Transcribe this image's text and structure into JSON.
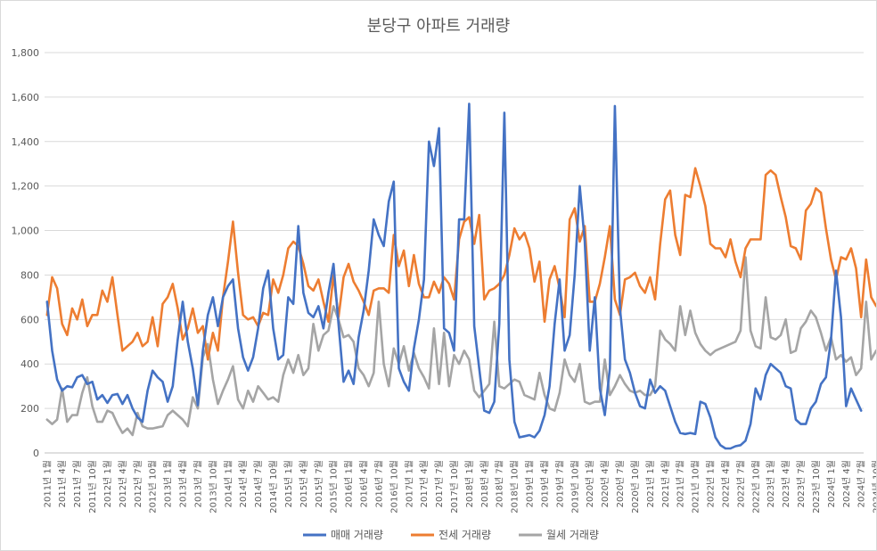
{
  "chart_data": {
    "type": "line",
    "title": "분당구 아파트 거래량",
    "xlabel": "",
    "ylabel": "",
    "ylim": [
      0,
      1800
    ],
    "yticks": [
      0,
      200,
      400,
      600,
      800,
      1000,
      1200,
      1400,
      1600,
      1800
    ],
    "ytick_labels": [
      "0",
      "200",
      "400",
      "600",
      "800",
      "1,000",
      "1,200",
      "1,400",
      "1,600",
      "1,800"
    ],
    "grid": true,
    "legend_position": "bottom",
    "x_start": "2011-01",
    "x_end": "2024-12",
    "xtick_labels": [
      "2011년 1월",
      "2011년 4월",
      "2011년 7월",
      "2011년 10월",
      "2012년 1월",
      "2012년 4월",
      "2012년 7월",
      "2012년 10월",
      "2013년 1월",
      "2013년 4월",
      "2013년 7월",
      "2013년 10월",
      "2014년 1월",
      "2014년 4월",
      "2014년 7월",
      "2014년 10월",
      "2015년 1월",
      "2015년 4월",
      "2015년 7월",
      "2015년 10월",
      "2016년 1월",
      "2016년 4월",
      "2016년 7월",
      "2016년 10월",
      "2017년 1월",
      "2017년 4월",
      "2017년 7월",
      "2017년 10월",
      "2018년 1월",
      "2018년 4월",
      "2018년 7월",
      "2018년 10월",
      "2019년 1월",
      "2019년 4월",
      "2019년 7월",
      "2019년 10월",
      "2020년 1월",
      "2020년 4월",
      "2020년 7월",
      "2020년 10월",
      "2021년 1월",
      "2021년 4월",
      "2021년 7월",
      "2021년 10월",
      "2022년 1월",
      "2022년 4월",
      "2022년 7월",
      "2022년 10월",
      "2023년 1월",
      "2023년 4월",
      "2023년 7월",
      "2023년 10월",
      "2024년 1월",
      "2024년 4월",
      "2024년 7월",
      "2024년 10월"
    ],
    "series": [
      {
        "name": "매매 거래량",
        "color": "#4472C4",
        "values": [
          680,
          460,
          330,
          280,
          300,
          295,
          340,
          350,
          310,
          320,
          240,
          260,
          225,
          260,
          265,
          220,
          260,
          200,
          160,
          140,
          280,
          370,
          340,
          320,
          230,
          300,
          510,
          680,
          500,
          380,
          215,
          460,
          620,
          700,
          570,
          700,
          750,
          780,
          560,
          430,
          370,
          430,
          560,
          740,
          820,
          560,
          420,
          440,
          700,
          670,
          1020,
          720,
          630,
          610,
          660,
          560,
          720,
          850,
          580,
          320,
          370,
          310,
          520,
          640,
          820,
          1050,
          980,
          930,
          1130,
          1220,
          380,
          320,
          280,
          470,
          600,
          780,
          1400,
          1290,
          1460,
          560,
          540,
          460,
          1050,
          1050,
          1570,
          570,
          380,
          190,
          180,
          230,
          580,
          1530,
          420,
          140,
          70,
          75,
          80,
          70,
          100,
          170,
          300,
          580,
          780,
          460,
          530,
          800,
          1200,
          950,
          460,
          700,
          290,
          170,
          380,
          1560,
          650,
          420,
          360,
          270,
          210,
          200,
          330,
          270,
          300,
          280,
          210,
          140,
          90,
          85,
          90,
          85,
          230,
          220,
          160,
          70,
          35,
          20,
          20,
          30,
          35,
          55,
          130,
          290,
          240,
          350,
          400,
          380,
          360,
          300,
          290,
          150,
          130,
          130,
          200,
          230,
          310,
          340,
          510,
          820,
          610,
          210,
          290,
          240,
          190
        ]
      },
      {
        "name": "전세 거래량",
        "color": "#ED7D31",
        "values": [
          620,
          790,
          740,
          580,
          530,
          650,
          600,
          690,
          570,
          620,
          620,
          730,
          680,
          790,
          620,
          460,
          480,
          500,
          540,
          480,
          500,
          610,
          480,
          670,
          700,
          760,
          650,
          510,
          560,
          650,
          540,
          570,
          420,
          540,
          460,
          700,
          860,
          1040,
          810,
          620,
          600,
          610,
          570,
          630,
          620,
          780,
          720,
          800,
          920,
          950,
          930,
          850,
          750,
          730,
          780,
          680,
          590,
          800,
          610,
          790,
          850,
          770,
          730,
          680,
          620,
          730,
          740,
          740,
          720,
          980,
          840,
          910,
          750,
          890,
          760,
          700,
          700,
          770,
          720,
          790,
          760,
          690,
          960,
          1040,
          1060,
          940,
          1070,
          690,
          730,
          740,
          760,
          800,
          890,
          1010,
          960,
          990,
          920,
          770,
          860,
          590,
          780,
          840,
          740,
          610,
          1050,
          1100,
          950,
          1020,
          680,
          680,
          760,
          880,
          1020,
          690,
          620,
          780,
          790,
          810,
          750,
          720,
          790,
          690,
          940,
          1140,
          1180,
          980,
          890,
          1160,
          1150,
          1280,
          1200,
          1110,
          940,
          920,
          920,
          880,
          960,
          860,
          790,
          920,
          960,
          960,
          960,
          1250,
          1270,
          1250,
          1150,
          1060,
          930,
          920,
          870,
          1090,
          1120,
          1190,
          1170,
          1010,
          870,
          780,
          880,
          870,
          920,
          830,
          610,
          870,
          700,
          660
        ]
      },
      {
        "name": "월세 거래량",
        "color": "#A5A5A5",
        "values": [
          150,
          130,
          150,
          290,
          140,
          170,
          170,
          270,
          340,
          210,
          140,
          140,
          190,
          180,
          130,
          90,
          110,
          80,
          180,
          120,
          110,
          110,
          115,
          120,
          170,
          190,
          170,
          150,
          120,
          250,
          200,
          430,
          490,
          330,
          220,
          280,
          330,
          390,
          240,
          200,
          280,
          230,
          300,
          270,
          240,
          250,
          230,
          350,
          420,
          360,
          440,
          350,
          380,
          580,
          460,
          530,
          550,
          660,
          600,
          520,
          530,
          500,
          380,
          350,
          300,
          360,
          680,
          400,
          300,
          470,
          400,
          480,
          370,
          450,
          380,
          340,
          290,
          560,
          310,
          540,
          300,
          440,
          400,
          460,
          420,
          280,
          250,
          280,
          310,
          590,
          300,
          290,
          310,
          330,
          320,
          260,
          250,
          240,
          360,
          260,
          200,
          190,
          270,
          420,
          350,
          320,
          400,
          230,
          220,
          230,
          230,
          420,
          260,
          300,
          350,
          310,
          280,
          270,
          280,
          260,
          260,
          300,
          550,
          510,
          490,
          460,
          660,
          530,
          640,
          540,
          490,
          460,
          440,
          460,
          470,
          480,
          490,
          500,
          550,
          880,
          550,
          480,
          470,
          700,
          520,
          510,
          530,
          600,
          450,
          460,
          560,
          590,
          640,
          610,
          540,
          460,
          520,
          420,
          440,
          410,
          430,
          350,
          380,
          680,
          420,
          460
        ]
      }
    ]
  }
}
